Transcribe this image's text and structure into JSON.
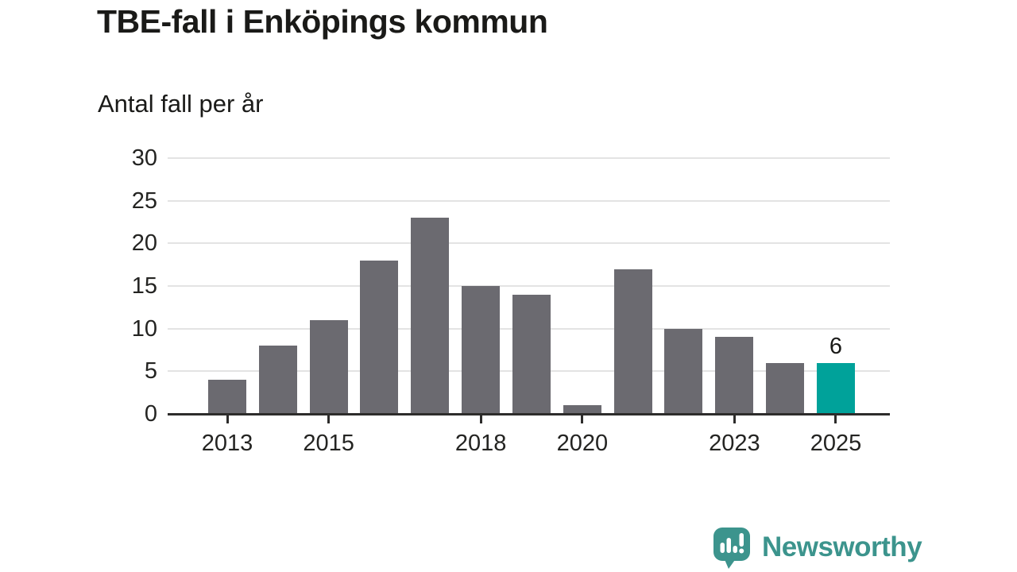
{
  "header": {
    "title": "TBE-fall i Enköpings kommun",
    "subtitle": "Antal fall per år"
  },
  "chart_data": {
    "type": "bar",
    "title": "TBE-fall i Enköpings kommun",
    "subtitle": "Antal fall per år",
    "categories": [
      "2013",
      "2014",
      "2015",
      "2016",
      "2017",
      "2018",
      "2019",
      "2020",
      "2021",
      "2022",
      "2023",
      "2024",
      "2025"
    ],
    "values": [
      4,
      8,
      11,
      18,
      23,
      15,
      14,
      1,
      17,
      10,
      9,
      6,
      6
    ],
    "xlabel": "",
    "ylabel": "Antal fall per år",
    "ylim": [
      0,
      30
    ],
    "yticks": [
      0,
      5,
      10,
      15,
      20,
      25,
      30
    ],
    "xtick_labels": [
      "2013",
      "2015",
      "2018",
      "2020",
      "2023",
      "2025"
    ],
    "grid": "horizontal",
    "legend": "none",
    "highlight_index": 12,
    "highlight_label": "6",
    "colors": {
      "bar": "#6b6a70",
      "highlight": "#00a29a",
      "gridline": "#e3e3e3",
      "axis": "#2d2c2b",
      "text": "#1a1a18"
    }
  },
  "footer": {
    "brand": "Newsworthy",
    "brand_color": "#3c948d",
    "logo_icon": "newsworthy-speech-bubble-barchart-icon"
  }
}
